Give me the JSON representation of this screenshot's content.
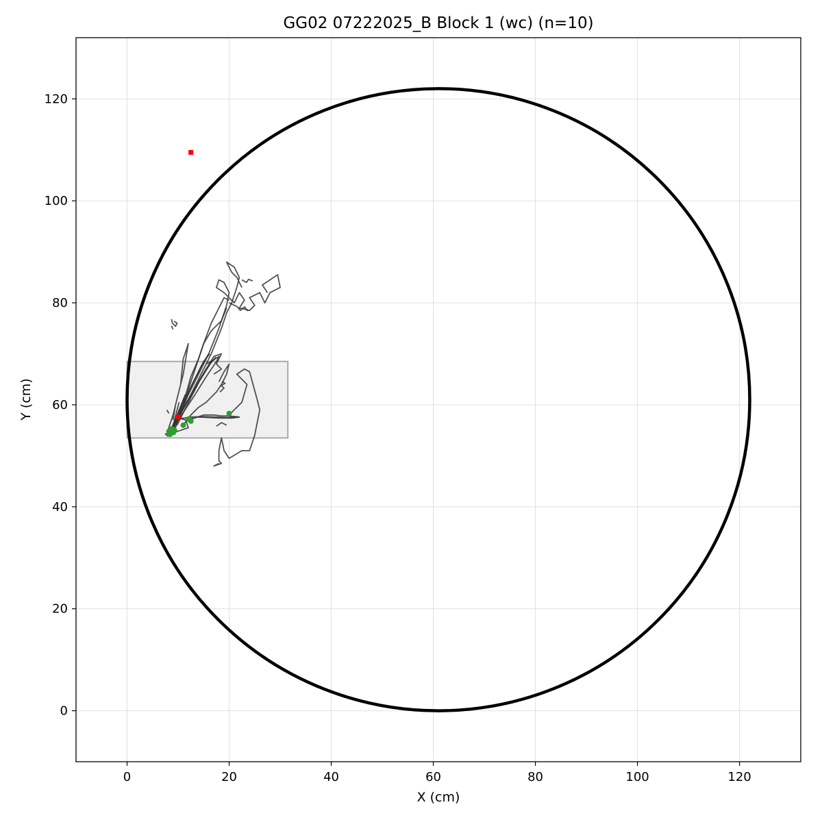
{
  "chart_data": {
    "type": "line",
    "title": "GG02 07222025_B Block 1 (wc) (n=10)",
    "xlabel": "X (cm)",
    "ylabel": "Y (cm)",
    "xlim": [
      -10,
      132
    ],
    "ylim": [
      -10,
      132
    ],
    "xticks": [
      0,
      20,
      40,
      60,
      80,
      100,
      120
    ],
    "yticks": [
      0,
      20,
      40,
      60,
      80,
      100,
      120
    ],
    "grid": true,
    "arena_circle": {
      "center": [
        61,
        61
      ],
      "radius": 61,
      "color": "#000000"
    },
    "start_zone": {
      "x": [
        0,
        31.5
      ],
      "y": [
        53.5,
        68.5
      ],
      "fill": "#f0f0f0",
      "stroke": "#aaaaaa"
    },
    "colors": {
      "trajectory": "#333333",
      "start_marker": "#2ca02c",
      "end_marker": "#ff0000"
    },
    "series": [
      {
        "values": [
          [
            8.5,
            55
          ],
          [
            9.5,
            57
          ],
          [
            11,
            60
          ],
          [
            13.5,
            65
          ],
          [
            16,
            70
          ],
          [
            18,
            75
          ],
          [
            19.5,
            79.5
          ],
          [
            20,
            82
          ],
          [
            19,
            84
          ],
          [
            18,
            84.5
          ],
          [
            17.5,
            83
          ],
          [
            19,
            82
          ],
          [
            21,
            80
          ],
          [
            22,
            82
          ],
          [
            23,
            80.5
          ],
          [
            22,
            79
          ],
          [
            24,
            78.5
          ],
          [
            25,
            79.5
          ],
          [
            24,
            81
          ],
          [
            26,
            82
          ],
          [
            27,
            80
          ],
          [
            28,
            82
          ],
          [
            30,
            83
          ],
          [
            29.5,
            85.5
          ],
          [
            28,
            84.5
          ],
          [
            26.5,
            83.5
          ],
          [
            27.5,
            82
          ]
        ]
      },
      {
        "values": [
          [
            8.5,
            54.8
          ],
          [
            10,
            57.5
          ],
          [
            12,
            61
          ],
          [
            14,
            65
          ],
          [
            16.5,
            70
          ],
          [
            18.5,
            75
          ],
          [
            19.5,
            78
          ],
          [
            20.5,
            80
          ],
          [
            21.5,
            83
          ],
          [
            22,
            85
          ],
          [
            21,
            87
          ],
          [
            19.5,
            88
          ],
          [
            20.5,
            86
          ],
          [
            21.5,
            85
          ],
          [
            22.5,
            83
          ]
        ]
      },
      {
        "values": [
          [
            8.2,
            54.5
          ],
          [
            9.5,
            56.5
          ],
          [
            11.5,
            60
          ],
          [
            13.5,
            63.5
          ],
          [
            15.5,
            67
          ],
          [
            17,
            69.5
          ],
          [
            18.5,
            70
          ],
          [
            17.5,
            68
          ],
          [
            18.5,
            67
          ],
          [
            17,
            66
          ]
        ]
      },
      {
        "values": [
          [
            20,
            58
          ],
          [
            22.5,
            60.5
          ],
          [
            23.5,
            64
          ],
          [
            21.5,
            66
          ],
          [
            23,
            67
          ],
          [
            24,
            66.5
          ],
          [
            25.5,
            61
          ],
          [
            26,
            59
          ],
          [
            25,
            54
          ],
          [
            24,
            51
          ],
          [
            22.5,
            51
          ],
          [
            20,
            49.5
          ],
          [
            19,
            51
          ],
          [
            18.5,
            53.5
          ],
          [
            18,
            51
          ],
          [
            18,
            49
          ],
          [
            18.5,
            48.5
          ],
          [
            17,
            48
          ],
          [
            18,
            48.5
          ]
        ]
      },
      {
        "values": [
          [
            8,
            55
          ],
          [
            9,
            58
          ],
          [
            10,
            62
          ],
          [
            11,
            66
          ],
          [
            12,
            72
          ],
          [
            11,
            69
          ],
          [
            10.5,
            64
          ],
          [
            9.5,
            60
          ],
          [
            9,
            57
          ]
        ]
      },
      {
        "values": [
          [
            12,
            57
          ],
          [
            13.5,
            57.5
          ],
          [
            15,
            58
          ],
          [
            17,
            58
          ],
          [
            18.5,
            57.8
          ],
          [
            20,
            57.8
          ],
          [
            22,
            57.6
          ],
          [
            20.5,
            57.4
          ],
          [
            18,
            57.4
          ],
          [
            16,
            57.5
          ],
          [
            14,
            57.6
          ],
          [
            12.5,
            57.3
          ]
        ]
      },
      {
        "values": [
          [
            11,
            56
          ],
          [
            12.5,
            58
          ],
          [
            14,
            59.5
          ],
          [
            15.5,
            60.5
          ],
          [
            16.5,
            61.5
          ],
          [
            17.5,
            62.5
          ],
          [
            18.5,
            64
          ],
          [
            19.5,
            66
          ],
          [
            20,
            68
          ],
          [
            19,
            66.5
          ],
          [
            18,
            64.5
          ]
        ]
      },
      {
        "values": [
          [
            8.5,
            54.5
          ],
          [
            9,
            55.5
          ],
          [
            9.5,
            56.8
          ],
          [
            10.5,
            57.3
          ],
          [
            11.5,
            57
          ],
          [
            12,
            55.5
          ],
          [
            10.5,
            55
          ],
          [
            9,
            54.5
          ],
          [
            7.5,
            54.3
          ],
          [
            8,
            53.8
          ]
        ]
      },
      {
        "values": [
          [
            9,
            55.2
          ],
          [
            10,
            58
          ],
          [
            11.5,
            62
          ],
          [
            12.5,
            65.5
          ],
          [
            14,
            69
          ],
          [
            15,
            72
          ],
          [
            16.5,
            74.5
          ],
          [
            18.5,
            76.5
          ],
          [
            19.5,
            79
          ]
        ]
      },
      {
        "values": [
          [
            8.2,
            55
          ],
          [
            9.5,
            56.5
          ],
          [
            11,
            58.5
          ],
          [
            13,
            61.5
          ],
          [
            15.5,
            65.5
          ],
          [
            17.5,
            68.5
          ],
          [
            18,
            69.5
          ],
          [
            17,
            68.8
          ],
          [
            15.5,
            68
          ]
        ]
      },
      {
        "values": [
          [
            9.5,
            55.5
          ],
          [
            10.5,
            58.5
          ],
          [
            12,
            63
          ],
          [
            13.5,
            67.5
          ],
          [
            15,
            72
          ],
          [
            16.5,
            76
          ],
          [
            18,
            79
          ],
          [
            19,
            81
          ],
          [
            20,
            80.5
          ]
        ]
      },
      {
        "values": [
          [
            8.8,
            55
          ],
          [
            9.3,
            57
          ],
          [
            9.8,
            59
          ],
          [
            10.2,
            60.5
          ]
        ]
      },
      {
        "values": [
          [
            10,
            57.2
          ],
          [
            12.5,
            57.6
          ],
          [
            15,
            57.7
          ],
          [
            17.5,
            57.6
          ],
          [
            19.5,
            57.5
          ],
          [
            22,
            57.6
          ]
        ]
      },
      {
        "values": [
          [
            9.2,
            55.3
          ],
          [
            10.8,
            59
          ],
          [
            12.5,
            63.5
          ],
          [
            14.5,
            67.5
          ],
          [
            16,
            70
          ]
        ]
      },
      {
        "values": [
          [
            8.8,
            54.8
          ],
          [
            10.5,
            59.5
          ],
          [
            13,
            64.5
          ],
          [
            15,
            68.5
          ],
          [
            16.2,
            70
          ]
        ]
      },
      {
        "values": [
          [
            8.6,
            55.1
          ],
          [
            9.6,
            57.5
          ],
          [
            10.6,
            60
          ],
          [
            11.4,
            62
          ]
        ]
      },
      {
        "values": [
          [
            9.8,
            56
          ],
          [
            11.7,
            59.8
          ],
          [
            14.2,
            64.7
          ],
          [
            16.8,
            68.8
          ]
        ]
      },
      {
        "values": [
          [
            8.4,
            54.6
          ],
          [
            10.2,
            58
          ],
          [
            12.8,
            62.5
          ],
          [
            15.6,
            67.2
          ],
          [
            17.4,
            69.4
          ]
        ]
      },
      {
        "values": [
          [
            17.5,
            55.8
          ],
          [
            18.5,
            56.5
          ],
          [
            19.5,
            56
          ]
        ]
      },
      {
        "values": [
          [
            18.2,
            62.5
          ],
          [
            19,
            63.3
          ],
          [
            18.4,
            63.8
          ],
          [
            19.2,
            64.2
          ],
          [
            18.6,
            64.6
          ]
        ]
      },
      {
        "values": [
          [
            8.7,
            76.8
          ],
          [
            8.9,
            76
          ],
          [
            9.5,
            75.4
          ],
          [
            9.8,
            76
          ],
          [
            9.2,
            76.4
          ]
        ]
      },
      {
        "values": [
          [
            8.7,
            75.5
          ],
          [
            9,
            74.8
          ]
        ]
      },
      {
        "values": [
          [
            7.8,
            59
          ],
          [
            8.2,
            58.3
          ]
        ]
      },
      {
        "values": [
          [
            20,
            80
          ],
          [
            21.5,
            79.3
          ],
          [
            22.2,
            78.5
          ],
          [
            23,
            79.2
          ],
          [
            23.7,
            78.4
          ]
        ]
      },
      {
        "values": [
          [
            22.5,
            84.5
          ],
          [
            23.4,
            84
          ],
          [
            23.8,
            84.6
          ],
          [
            24.6,
            84.3
          ]
        ]
      }
    ],
    "start_points": [
      [
        8.2,
        54.8
      ],
      [
        8.6,
        54.4
      ],
      [
        8.8,
        55.3
      ],
      [
        9.3,
        55
      ],
      [
        11,
        56
      ],
      [
        12,
        57.2
      ],
      [
        20,
        58.3
      ],
      [
        12.5,
        56.8
      ],
      [
        8.4,
        54.2
      ],
      [
        9.1,
        54.6
      ]
    ],
    "end_points": [
      [
        10,
        57.6
      ],
      [
        12.5,
        109.5
      ]
    ]
  }
}
